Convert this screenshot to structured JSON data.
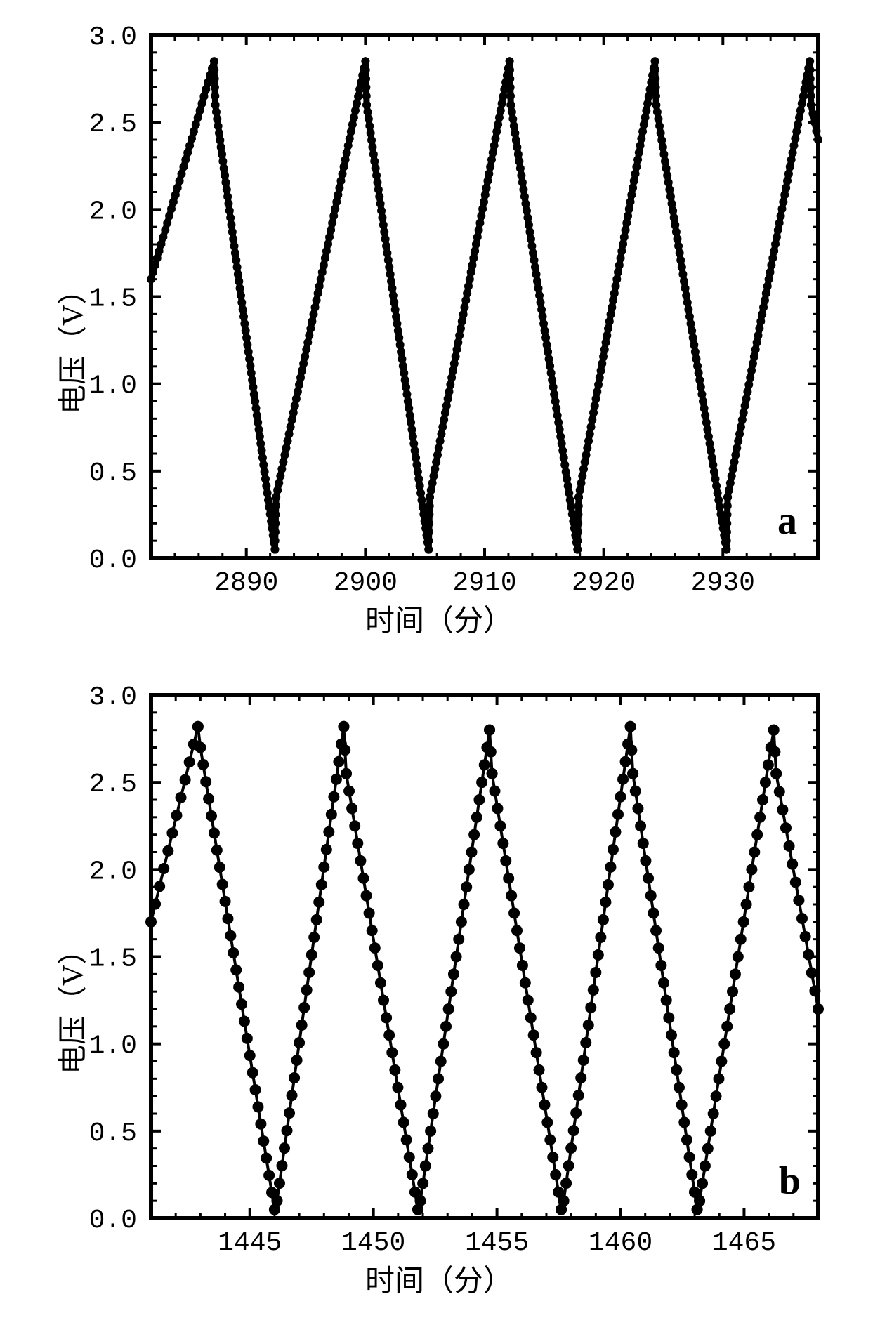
{
  "figure": {
    "background_color": "#ffffff",
    "panels": [
      "a",
      "b"
    ]
  },
  "panel_a": {
    "type": "line",
    "letter": "a",
    "xlabel": "时间（分）",
    "ylabel": "电压（V）",
    "xlim": [
      2882,
      2938
    ],
    "ylim": [
      0.0,
      3.0
    ],
    "ytick_positions": [
      0.0,
      0.5,
      1.0,
      1.5,
      2.0,
      2.5,
      3.0
    ],
    "ytick_labels": [
      "0.0",
      "0.5",
      "1.0",
      "1.5",
      "2.0",
      "2.5",
      "3.0"
    ],
    "xtick_positions": [
      2890,
      2900,
      2910,
      2920,
      2930
    ],
    "xtick_labels": [
      "2890",
      "2900",
      "2910",
      "2920",
      "2930"
    ],
    "minor_x_step": 2,
    "minor_y_step": 0.1,
    "frame_color": "#000000",
    "frame_width": 6,
    "tick_length_major": 14,
    "tick_length_minor": 8,
    "line_color": "#000000",
    "line_width": 9,
    "marker_style": "circle",
    "marker_size": 6,
    "marker_color": "#000000",
    "label_fontsize": 42,
    "tick_fontsize": 38,
    "letter_fontsize": 56,
    "series": {
      "x": [
        2882.0,
        2887.3,
        2887.4,
        2892.4,
        2892.5,
        2900.0,
        2900.1,
        2905.3,
        2905.4,
        2912.1,
        2912.2,
        2917.8,
        2917.9,
        2924.3,
        2924.4,
        2930.3,
        2930.4,
        2937.3,
        2937.4,
        2938.0
      ],
      "y": [
        1.6,
        2.85,
        2.6,
        0.05,
        0.35,
        2.85,
        2.6,
        0.05,
        0.35,
        2.85,
        2.6,
        0.05,
        0.35,
        2.85,
        2.6,
        0.05,
        0.35,
        2.85,
        2.6,
        2.4
      ]
    }
  },
  "panel_b": {
    "type": "scatter-line",
    "letter": "b",
    "xlabel": "时间（分）",
    "ylabel": "电压（V）",
    "xlim": [
      1441,
      1468
    ],
    "ylim": [
      0.0,
      3.0
    ],
    "ytick_positions": [
      0.0,
      0.5,
      1.0,
      1.5,
      2.0,
      2.5,
      3.0
    ],
    "ytick_labels": [
      "0.0",
      "0.5",
      "1.0",
      "1.5",
      "2.0",
      "2.5",
      "3.0"
    ],
    "xtick_positions": [
      1445,
      1450,
      1455,
      1460,
      1465
    ],
    "xtick_labels": [
      "1445",
      "1450",
      "1455",
      "1460",
      "1465"
    ],
    "minor_x_step": 1,
    "minor_y_step": 0.1,
    "frame_color": "#000000",
    "frame_width": 6,
    "tick_length_major": 14,
    "tick_length_minor": 8,
    "marker_style": "circle",
    "marker_size": 8,
    "marker_color": "#000000",
    "line_color": "#000000",
    "line_width": 4,
    "label_fontsize": 42,
    "tick_fontsize": 38,
    "letter_fontsize": 56,
    "series": {
      "x": [
        1441.0,
        1442.9,
        1443.0,
        1446.0,
        1446.1,
        1448.8,
        1448.9,
        1451.8,
        1451.9,
        1454.7,
        1454.8,
        1457.6,
        1457.7,
        1460.4,
        1460.5,
        1463.1,
        1463.2,
        1466.2,
        1466.3,
        1468.0
      ],
      "y": [
        1.7,
        2.82,
        2.7,
        0.05,
        0.1,
        2.82,
        2.55,
        0.05,
        0.1,
        2.8,
        2.55,
        0.05,
        0.1,
        2.82,
        2.55,
        0.05,
        0.1,
        2.8,
        2.55,
        1.2
      ]
    }
  }
}
